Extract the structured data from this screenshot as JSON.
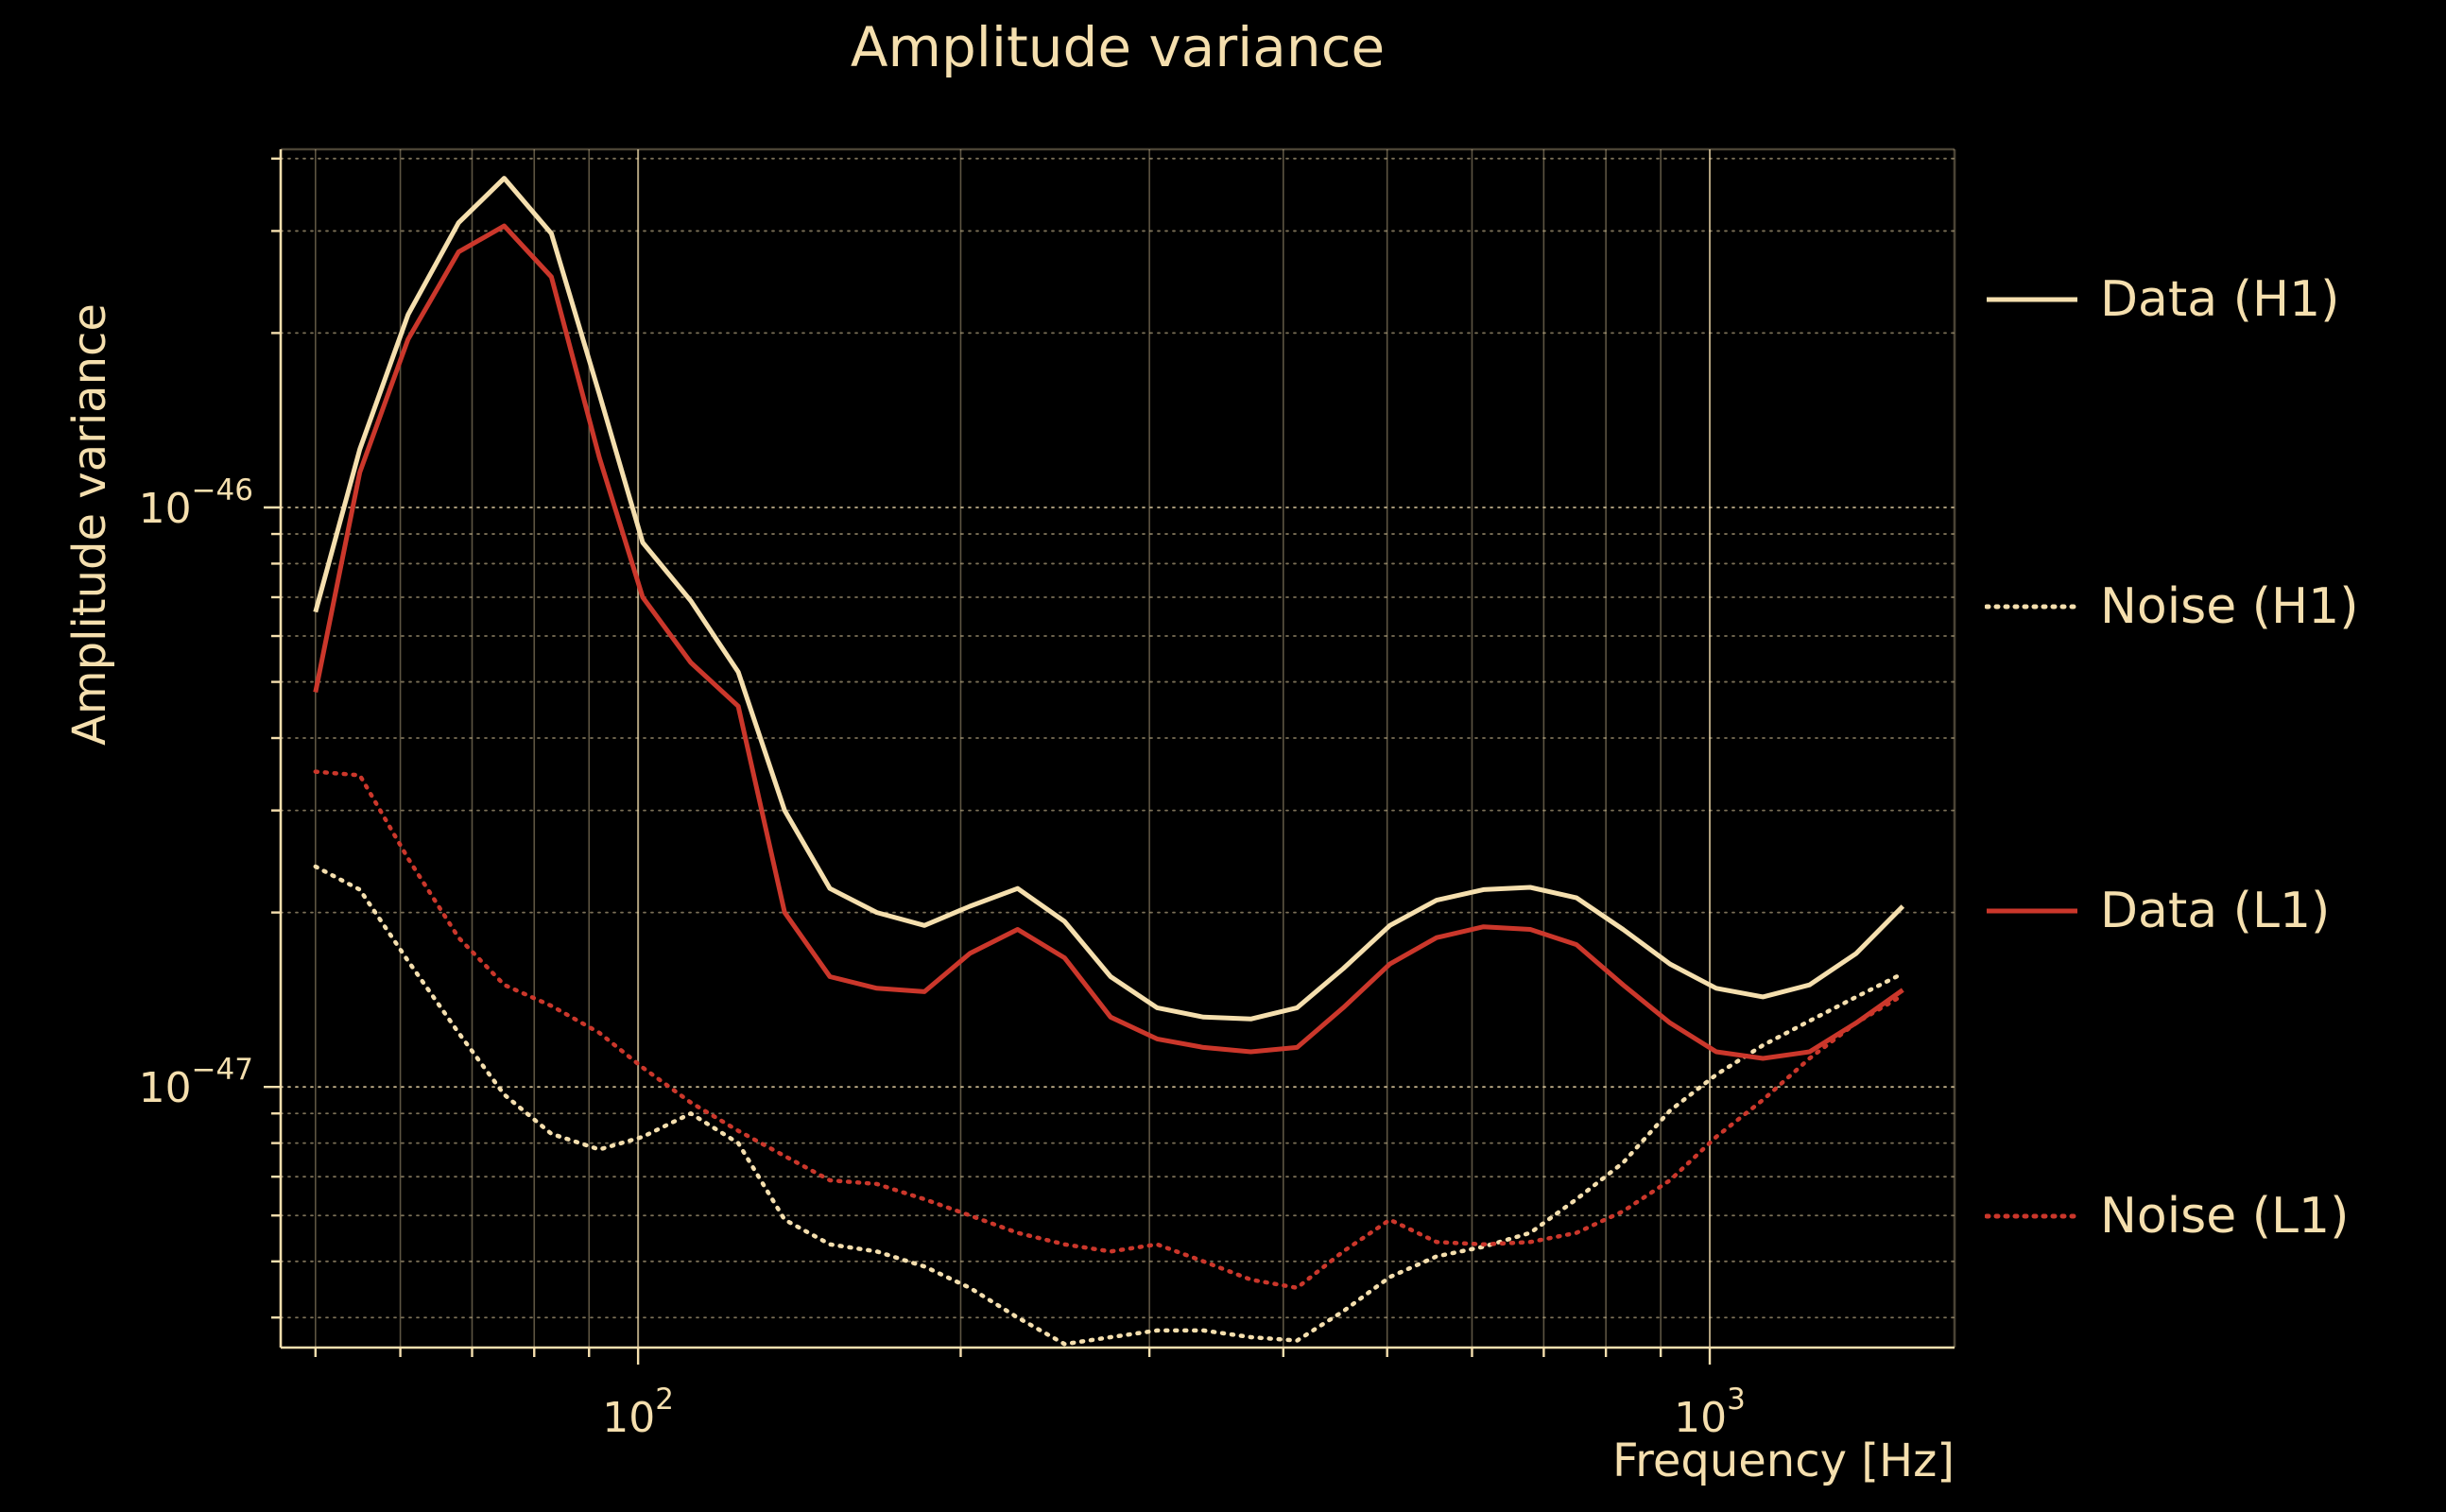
{
  "colors": {
    "background": "#000000",
    "cream": "#f5dfae",
    "red": "#cb372b"
  },
  "chart_data": {
    "type": "line",
    "title": "Amplitude variance",
    "xlabel": "Frequency [Hz]",
    "ylabel": "Amplitude variance",
    "xscale": "log",
    "yscale": "log",
    "xlim": [
      46.4,
      1692
    ],
    "ylim": [
      3.55e-48,
      4.15e-46
    ],
    "grid": true,
    "legend_position": "outside-right",
    "x_ticks": [
      {
        "value": 100,
        "base": "10",
        "exp": "2"
      },
      {
        "value": 1000,
        "base": "10",
        "exp": "3"
      }
    ],
    "y_ticks": [
      {
        "value": 1e-46,
        "base": "10",
        "exp": "−46"
      },
      {
        "value": 1e-47,
        "base": "10",
        "exp": "−47"
      }
    ],
    "frequencies_hz": [
      50,
      55,
      61,
      68,
      75,
      83,
      92,
      101,
      112,
      124,
      137,
      151,
      167,
      185,
      204,
      226,
      250,
      276,
      305,
      337,
      373,
      412,
      455,
      503,
      556,
      615,
      680,
      751,
      830,
      918,
      1014,
      1121,
      1239,
      1370,
      1514
    ],
    "series": [
      {
        "name": "Data (H1)",
        "color": "#f5dfae",
        "style": "solid",
        "values": [
          6.6e-47,
          1.26e-46,
          2.15e-46,
          3.1e-46,
          3.7e-46,
          2.97e-46,
          1.57e-46,
          8.7e-47,
          6.9e-47,
          5.2e-47,
          3e-47,
          2.2e-47,
          2e-47,
          1.9e-47,
          2.05e-47,
          2.2e-47,
          1.93e-47,
          1.55e-47,
          1.37e-47,
          1.32e-47,
          1.31e-47,
          1.37e-47,
          1.6e-47,
          1.9e-47,
          2.1e-47,
          2.19e-47,
          2.21e-47,
          2.12e-47,
          1.87e-47,
          1.63e-47,
          1.48e-47,
          1.43e-47,
          1.5e-47,
          1.7e-47,
          2.05e-47
        ]
      },
      {
        "name": "Noise (H1)",
        "color": "#f5dfae",
        "style": "dotted",
        "values": [
          2.4e-47,
          2.19e-47,
          1.65e-47,
          1.24e-47,
          9.7e-48,
          8.3e-48,
          7.8e-48,
          8.2e-48,
          9e-48,
          8e-48,
          5.9e-48,
          5.35e-48,
          5.2e-48,
          4.9e-48,
          4.5e-48,
          4e-48,
          3.6e-48,
          3.7e-48,
          3.8e-48,
          3.8e-48,
          3.7e-48,
          3.65e-48,
          4.1e-48,
          4.7e-48,
          5.1e-48,
          5.3e-48,
          5.6e-48,
          6.4e-48,
          7.4e-48,
          9.1e-48,
          1.05e-47,
          1.18e-47,
          1.3e-47,
          1.43e-47,
          1.57e-47
        ]
      },
      {
        "name": "Data (L1)",
        "color": "#cb372b",
        "style": "solid",
        "values": [
          4.8e-47,
          1.15e-46,
          1.95e-46,
          2.76e-46,
          3.06e-46,
          2.5e-46,
          1.22e-46,
          7e-47,
          5.4e-47,
          4.54e-47,
          2e-47,
          1.55e-47,
          1.48e-47,
          1.46e-47,
          1.7e-47,
          1.87e-47,
          1.67e-47,
          1.32e-47,
          1.21e-47,
          1.17e-47,
          1.15e-47,
          1.17e-47,
          1.37e-47,
          1.63e-47,
          1.81e-47,
          1.89e-47,
          1.87e-47,
          1.76e-47,
          1.5e-47,
          1.29e-47,
          1.15e-47,
          1.12e-47,
          1.15e-47,
          1.29e-47,
          1.47e-47
        ]
      },
      {
        "name": "Noise (L1)",
        "color": "#cb372b",
        "style": "dotted",
        "values": [
          3.5e-47,
          3.45e-47,
          2.48e-47,
          1.81e-47,
          1.5e-47,
          1.38e-47,
          1.24e-47,
          1.08e-47,
          9.4e-48,
          8.4e-48,
          7.6e-48,
          6.9e-48,
          6.8e-48,
          6.4e-48,
          6e-48,
          5.6e-48,
          5.35e-48,
          5.2e-48,
          5.35e-48,
          5e-48,
          4.65e-48,
          4.5e-48,
          5.2e-48,
          5.9e-48,
          5.4e-48,
          5.35e-48,
          5.4e-48,
          5.6e-48,
          6.1e-48,
          6.9e-48,
          8.2e-48,
          9.5e-48,
          1.12e-47,
          1.29e-47,
          1.44e-47
        ]
      }
    ]
  }
}
